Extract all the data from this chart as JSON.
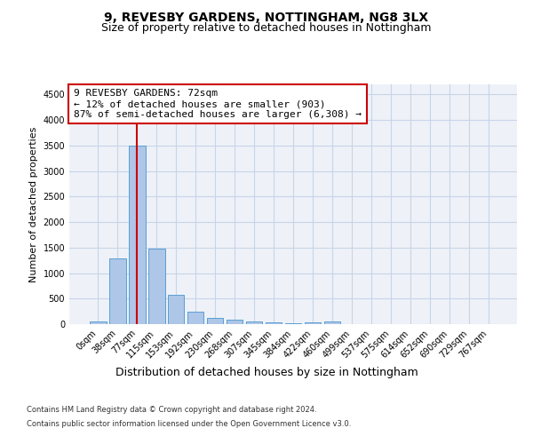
{
  "title1": "9, REVESBY GARDENS, NOTTINGHAM, NG8 3LX",
  "title2": "Size of property relative to detached houses in Nottingham",
  "xlabel": "Distribution of detached houses by size in Nottingham",
  "ylabel": "Number of detached properties",
  "categories": [
    "0sqm",
    "38sqm",
    "77sqm",
    "115sqm",
    "153sqm",
    "192sqm",
    "230sqm",
    "268sqm",
    "307sqm",
    "345sqm",
    "384sqm",
    "422sqm",
    "460sqm",
    "499sqm",
    "537sqm",
    "575sqm",
    "614sqm",
    "652sqm",
    "690sqm",
    "729sqm",
    "767sqm"
  ],
  "values": [
    50,
    1280,
    3500,
    1480,
    570,
    250,
    130,
    85,
    55,
    30,
    20,
    40,
    55,
    0,
    0,
    0,
    0,
    0,
    0,
    0,
    0
  ],
  "bar_color": "#aec6e8",
  "bar_edge_color": "#5a9fd4",
  "vline_x_idx": 2,
  "vline_color": "#cc0000",
  "annotation_text_line1": "9 REVESBY GARDENS: 72sqm",
  "annotation_text_line2": "← 12% of detached houses are smaller (903)",
  "annotation_text_line3": "87% of semi-detached houses are larger (6,308) →",
  "annotation_box_color": "#ffffff",
  "annotation_box_edge": "#cc0000",
  "ylim": [
    0,
    4700
  ],
  "yticks": [
    0,
    500,
    1000,
    1500,
    2000,
    2500,
    3000,
    3500,
    4000,
    4500
  ],
  "footer1": "Contains HM Land Registry data © Crown copyright and database right 2024.",
  "footer2": "Contains public sector information licensed under the Open Government Licence v3.0.",
  "plot_bg": "#eef2f8",
  "title_fontsize": 10,
  "subtitle_fontsize": 9,
  "xlabel_fontsize": 9,
  "ylabel_fontsize": 8,
  "tick_fontsize": 7,
  "footer_fontsize": 6,
  "ann_fontsize": 8
}
